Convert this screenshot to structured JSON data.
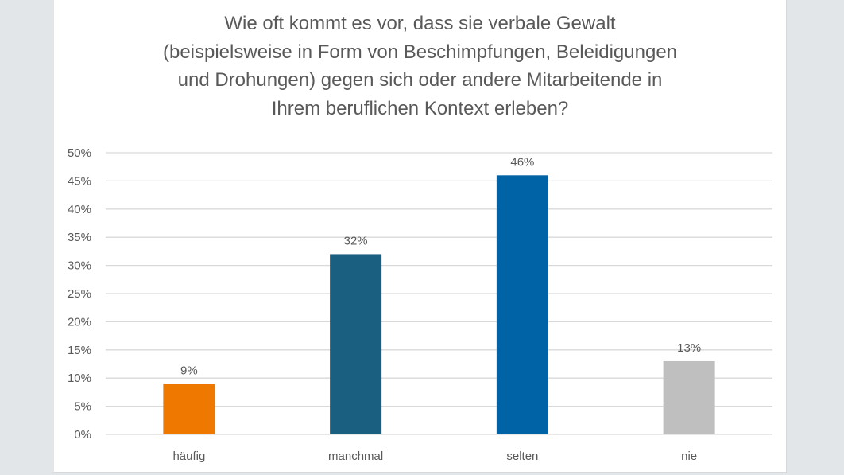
{
  "chart_data": {
    "type": "bar",
    "title_lines": [
      "Wie oft kommt es vor, dass sie verbale Gewalt",
      "(beispielsweise in Form von Beschimpfungen, Beleidigungen",
      "und Drohungen) gegen sich oder andere Mitarbeitende in",
      "Ihrem beruflichen Kontext erleben?"
    ],
    "categories": [
      "häufig",
      "manchmal",
      "selten",
      "nie"
    ],
    "values": [
      9,
      32,
      46,
      13
    ],
    "data_labels": [
      "9%",
      "32%",
      "46%",
      "13%"
    ],
    "colors": [
      "#ef7800",
      "#1a5e80",
      "#0063a6",
      "#bfbfbf"
    ],
    "ylim": [
      0,
      50
    ],
    "y_ticks": [
      "0%",
      "5%",
      "10%",
      "15%",
      "20%",
      "25%",
      "30%",
      "35%",
      "40%",
      "45%",
      "50%"
    ],
    "grid": true,
    "legend": "none",
    "xlabel": "",
    "ylabel": ""
  }
}
